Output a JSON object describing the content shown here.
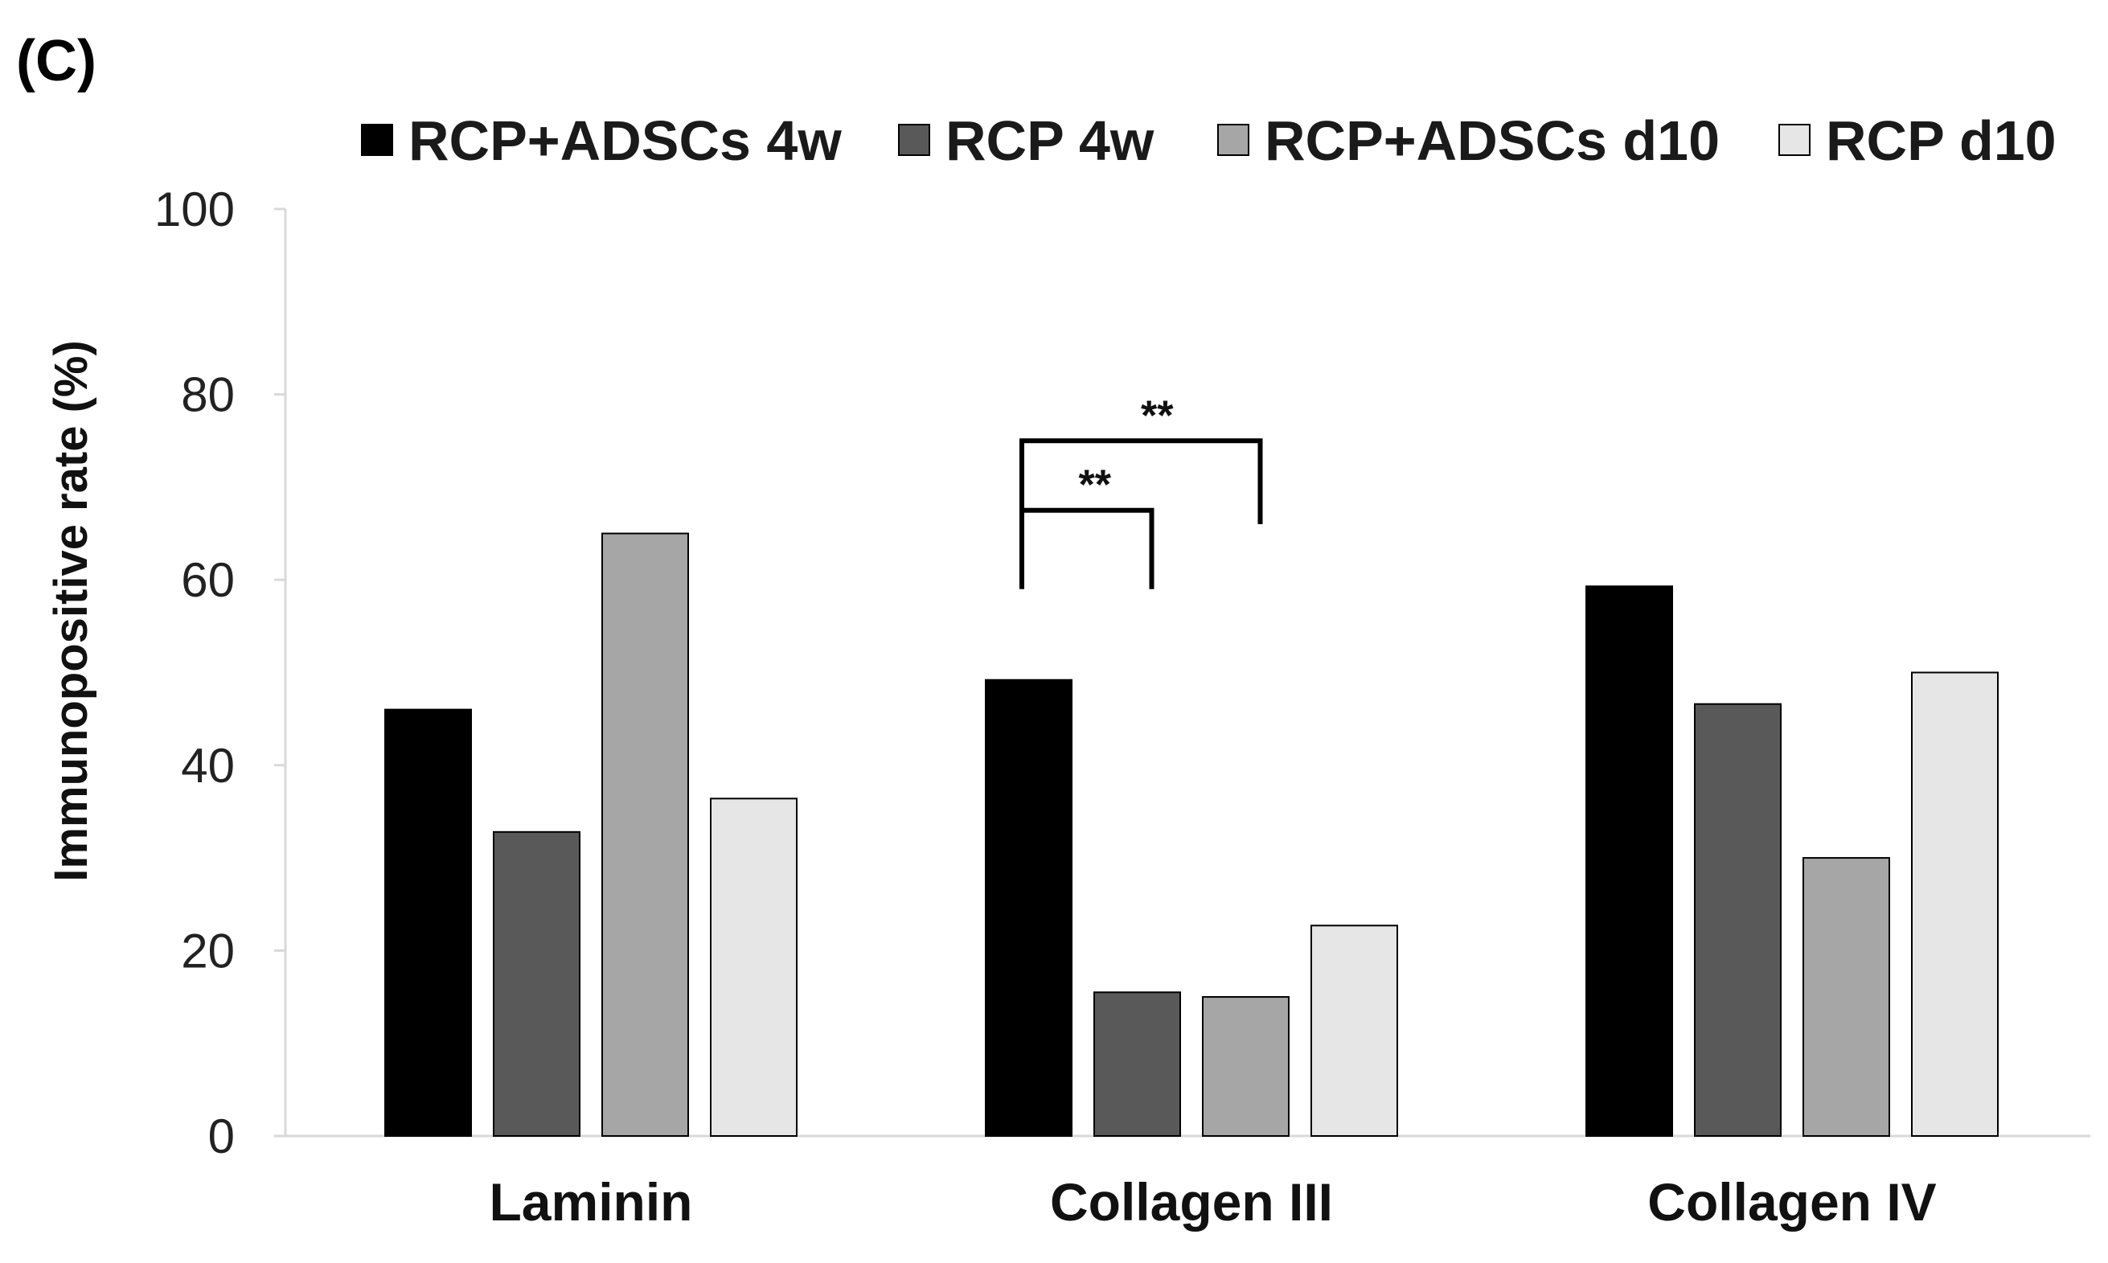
{
  "panel_label": "(C)",
  "colors": {
    "RCP+ADSCs 4w": "#000000",
    "RCP 4w": "#595959",
    "RCP+ADSCs d10": "#a6a6a6",
    "RCP d10": "#e6e6e6"
  },
  "chart_data": {
    "type": "bar",
    "title": "",
    "xlabel": "",
    "ylabel": "Immunopositive rate (%)",
    "ylim": [
      0,
      100
    ],
    "yticks": [
      0,
      20,
      40,
      60,
      80,
      100
    ],
    "categories": [
      "Laminin",
      "Collagen III",
      "Collagen IV"
    ],
    "series": [
      {
        "name": "RCP+ADSCs 4w",
        "values": [
          46,
          49.2,
          59.3
        ]
      },
      {
        "name": "RCP 4w",
        "values": [
          32.8,
          15.5,
          46.6
        ]
      },
      {
        "name": "RCP+ADSCs d10",
        "values": [
          65,
          15,
          30
        ]
      },
      {
        "name": "RCP d10",
        "values": [
          36.4,
          22.7,
          50
        ]
      }
    ],
    "legend_position": "top",
    "significance": [
      {
        "category": "Collagen III",
        "from_series": "RCP+ADSCs 4w",
        "to_series": "RCP 4w",
        "label": "**",
        "height": 67.5,
        "left_end": 59,
        "right_end": 59
      },
      {
        "category": "Collagen III",
        "from_series": "RCP+ADSCs 4w",
        "to_series": "RCP+ADSCs d10",
        "label": "**",
        "height": 75,
        "left_end": 67.5,
        "right_end": 66
      }
    ]
  }
}
